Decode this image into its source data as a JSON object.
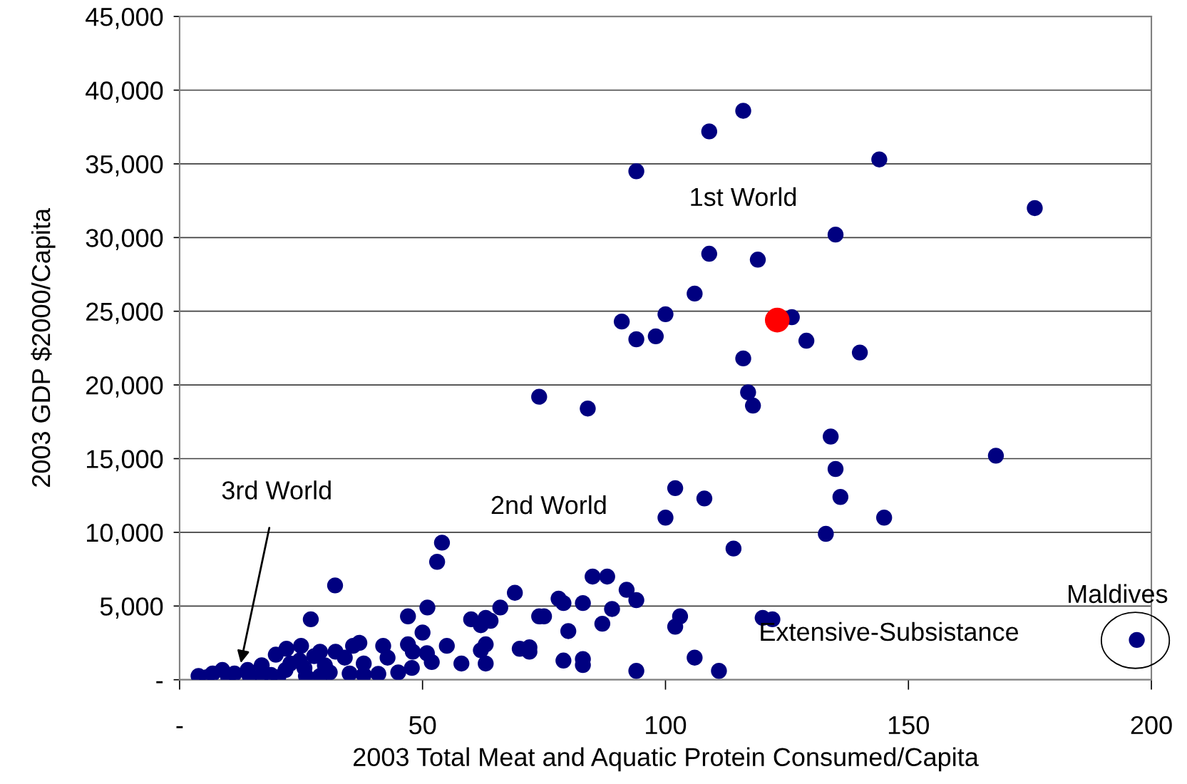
{
  "chart_data": {
    "type": "scatter",
    "xlabel": "2003 Total Meat and Aquatic Protein Consumed/Capita",
    "ylabel": "2003 GDP $2000/Capita",
    "xlim": [
      0,
      200
    ],
    "xticks": [
      {
        "value": 0,
        "label": "-"
      },
      50,
      100,
      150,
      200
    ],
    "ylim": [
      0,
      45000
    ],
    "yticks": [
      {
        "value": 0,
        "label": "-"
      },
      {
        "value": 5000,
        "label": "5,000"
      },
      {
        "value": 10000,
        "label": "10,000"
      },
      {
        "value": 15000,
        "label": "15,000"
      },
      {
        "value": 20000,
        "label": "20,000"
      },
      {
        "value": 25000,
        "label": "25,000"
      },
      {
        "value": 30000,
        "label": "30,000"
      },
      {
        "value": 35000,
        "label": "35,000"
      },
      {
        "value": 40000,
        "label": "40,000"
      },
      {
        "value": 45000,
        "label": "45,000"
      }
    ],
    "grid": "y",
    "marker": "circle",
    "annotations": [
      "1st World",
      "2nd World",
      "Extensive-Subsistance",
      "3rd World",
      {
        "text": "Maldives",
        "x": 197,
        "y": 2670
      }
    ],
    "series": [
      {
        "color": "#000080",
        "x": [
          116,
          109,
          144,
          94,
          176,
          135,
          109,
          119,
          106,
          100,
          126,
          91,
          94,
          98,
          129,
          140,
          116,
          74,
          84,
          117,
          118,
          134,
          168,
          135,
          102,
          108,
          136,
          100,
          145,
          133,
          114,
          54,
          53,
          32,
          85,
          88,
          69,
          92,
          94,
          78,
          79,
          83,
          89,
          66,
          51,
          47,
          27,
          60,
          63,
          64,
          62,
          74,
          75,
          103,
          120,
          122,
          102,
          87,
          80,
          50,
          55,
          63,
          62,
          70,
          72,
          72,
          106,
          79,
          83,
          83,
          63,
          58,
          94,
          111,
          197,
          3.9,
          6.8,
          8.8,
          11.3,
          14,
          16.9,
          19.8,
          22,
          25,
          28.9,
          32.1,
          34,
          37,
          35.7,
          41.9,
          42.8,
          47,
          48,
          50.9,
          51.9,
          47.8,
          45,
          40.9,
          37.9,
          37.9,
          35,
          30.9,
          28.9,
          26,
          29.9,
          24.7,
          21.8,
          20.3,
          18.8,
          16.9,
          14.4,
          10,
          5.6,
          25.7,
          22.8,
          27.7
        ],
        "values": [
          38600,
          37200,
          35300,
          34500,
          32000,
          30200,
          28900,
          28500,
          26200,
          24800,
          24600,
          24300,
          23100,
          23300,
          23000,
          22200,
          21800,
          19200,
          18400,
          19500,
          18600,
          16500,
          15200,
          14300,
          13000,
          12300,
          12400,
          11000,
          11000,
          9900,
          8900,
          9300,
          8000,
          6400,
          7000,
          7000,
          5900,
          6100,
          5400,
          5500,
          5200,
          5200,
          4800,
          4900,
          4900,
          4300,
          4100,
          4100,
          4200,
          4000,
          3700,
          4300,
          4300,
          4300,
          4200,
          4100,
          3600,
          3800,
          3300,
          3200,
          2300,
          2400,
          2000,
          2100,
          2200,
          1900,
          1500,
          1300,
          1400,
          1000,
          1100,
          1100,
          600,
          600,
          2700,
          260,
          420,
          660,
          420,
          660,
          980,
          1700,
          2100,
          2300,
          1900,
          1900,
          1500,
          2500,
          2300,
          2300,
          1500,
          2400,
          1900,
          1800,
          1200,
          800,
          500,
          400,
          1100,
          330,
          420,
          500,
          260,
          260,
          980,
          1300,
          660,
          170,
          330,
          330,
          260,
          170,
          170,
          800,
          1100,
          1600
        ]
      },
      {
        "color": "#ff0000",
        "x": [
          123
        ],
        "values": [
          24400
        ]
      }
    ]
  }
}
